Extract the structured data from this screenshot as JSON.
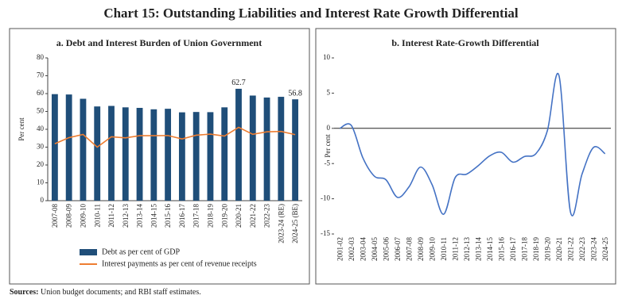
{
  "title": "Chart 15: Outstanding Liabilities and Interest Rate Growth Differential",
  "chart_data": [
    {
      "type": "bar",
      "title": "a. Debt and Interest Burden of Union Government",
      "y_label": "Per cent",
      "categories": [
        "2007-08",
        "2008-09",
        "2009-10",
        "2010-11",
        "2011-12",
        "2012-13",
        "2013-14",
        "2014-15",
        "2015-16",
        "2016-17",
        "2017-18",
        "2018-19",
        "2019-20",
        "2020-21",
        "2021-22",
        "2022-23",
        "2023-24 (RE)",
        "2024-25 (BE)"
      ],
      "series": [
        {
          "name": "Debt as per cent of GDP",
          "type": "bar",
          "color": "#1f4e79",
          "values": [
            59.7,
            59.5,
            57.1,
            52.8,
            53.1,
            52.3,
            52.0,
            51.2,
            51.5,
            49.5,
            49.7,
            49.6,
            52.3,
            62.7,
            58.9,
            57.8,
            58.2,
            56.8
          ],
          "labeled": [
            13,
            17
          ]
        },
        {
          "name": "Interest payments as per cent of revenue receipts",
          "type": "line",
          "color": "#ed7d31",
          "values": [
            31.9,
            35.3,
            37.1,
            30.0,
            35.8,
            35.2,
            36.4,
            36.4,
            36.5,
            34.6,
            36.7,
            37.3,
            36.2,
            41.1,
            37.2,
            38.6,
            38.8,
            37.0
          ]
        }
      ],
      "ylim": [
        0,
        80
      ],
      "yticks": [
        0,
        10,
        20,
        30,
        40,
        50,
        60,
        70,
        80
      ]
    },
    {
      "type": "line",
      "title": "b. Interest Rate-Growth Differential",
      "y_label": "Per cent",
      "categories": [
        "2001-02",
        "2002-03",
        "2003-04",
        "2004-05",
        "2005-06",
        "2006-07",
        "2007-08",
        "2008-09",
        "2009-10",
        "2010-11",
        "2011-12",
        "2012-13",
        "2013-14",
        "2014-15",
        "2015-16",
        "2016-17",
        "2017-18",
        "2018-19",
        "2019-20",
        "2020-21",
        "2021-22",
        "2022-23",
        "2023-24",
        "2024-25"
      ],
      "series": [
        {
          "name": null,
          "color": "#4472c4",
          "values": [
            0.0,
            0.4,
            -4.2,
            -6.8,
            -7.3,
            -9.8,
            -8.3,
            -5.5,
            -8.0,
            -12.2,
            -7.0,
            -6.5,
            -5.3,
            -3.9,
            -3.4,
            -4.8,
            -4.0,
            -3.6,
            -0.3,
            7.5,
            -11.9,
            -6.5,
            -2.7,
            -3.6
          ]
        }
      ],
      "ylim": [
        -15,
        10
      ],
      "yticks": [
        -15,
        -10,
        -5,
        0,
        5,
        10
      ],
      "zero_line": true
    }
  ],
  "source": {
    "label": "Sources:",
    "text": "Union budget documents; and RBI staff estimates."
  }
}
